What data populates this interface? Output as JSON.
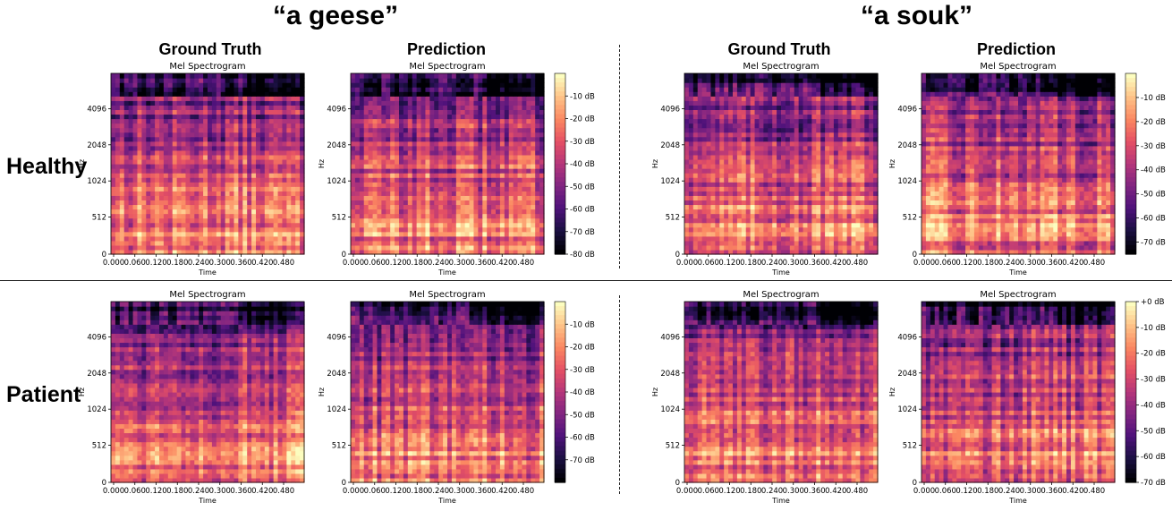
{
  "phrases": [
    "“a geese”",
    "“a souk”"
  ],
  "row_labels": [
    "Healthy",
    "Patient"
  ],
  "column_titles": [
    "Ground Truth",
    "Prediction",
    "Ground Truth",
    "Prediction"
  ],
  "chart_data": [
    {
      "type": "heatmap",
      "row": "Healthy",
      "phrase": "“a geese”",
      "column": "Ground Truth",
      "title": "Mel Spectrogram",
      "xlabel": "Time",
      "ylabel": "Hz",
      "x_ticks": [
        "0.000",
        "0.060",
        "0.120",
        "0.180",
        "0.240",
        "0.300",
        "0.360",
        "0.420",
        "0.480"
      ],
      "y_ticks": [
        "0",
        "512",
        "1024",
        "2048",
        "4096"
      ],
      "colorbar": []
    },
    {
      "type": "heatmap",
      "row": "Healthy",
      "phrase": "“a geese”",
      "column": "Prediction",
      "title": "Mel Spectrogram",
      "xlabel": "Time",
      "ylabel": "Hz",
      "x_ticks": [
        "0.000",
        "0.060",
        "0.120",
        "0.180",
        "0.240",
        "0.300",
        "0.360",
        "0.420",
        "0.480"
      ],
      "y_ticks": [
        "0",
        "512",
        "1024",
        "2048",
        "4096"
      ],
      "colorbar": [
        "-10 dB",
        "-20 dB",
        "-30 dB",
        "-40 dB",
        "-50 dB",
        "-60 dB",
        "-70 dB",
        "-80 dB"
      ],
      "colorbar_range": [
        -80,
        0
      ]
    },
    {
      "type": "heatmap",
      "row": "Healthy",
      "phrase": "“a souk”",
      "column": "Ground Truth",
      "title": "Mel Spectrogram",
      "xlabel": "Time",
      "ylabel": "Hz",
      "x_ticks": [
        "0.000",
        "0.060",
        "0.120",
        "0.180",
        "0.240",
        "0.300",
        "0.360",
        "0.420",
        "0.480"
      ],
      "y_ticks": [
        "0",
        "512",
        "1024",
        "2048",
        "4096"
      ],
      "colorbar": []
    },
    {
      "type": "heatmap",
      "row": "Healthy",
      "phrase": "“a souk”",
      "column": "Prediction",
      "title": "Mel Spectrogram",
      "xlabel": "Time",
      "ylabel": "Hz",
      "x_ticks": [
        "0.000",
        "0.060",
        "0.120",
        "0.180",
        "0.240",
        "0.300",
        "0.360",
        "0.420",
        "0.480"
      ],
      "y_ticks": [
        "0",
        "512",
        "1024",
        "2048",
        "4096"
      ],
      "colorbar": [
        "-10 dB",
        "-20 dB",
        "-30 dB",
        "-40 dB",
        "-50 dB",
        "-60 dB",
        "-70 dB"
      ],
      "colorbar_range": [
        -75,
        0
      ]
    },
    {
      "type": "heatmap",
      "row": "Patient",
      "phrase": "“a geese”",
      "column": "Ground Truth",
      "title": "Mel Spectrogram",
      "xlabel": "Time",
      "ylabel": "Hz",
      "x_ticks": [
        "0.000",
        "0.060",
        "0.120",
        "0.180",
        "0.240",
        "0.300",
        "0.360",
        "0.420",
        "0.480"
      ],
      "y_ticks": [
        "0",
        "512",
        "1024",
        "2048",
        "4096"
      ],
      "colorbar": []
    },
    {
      "type": "heatmap",
      "row": "Patient",
      "phrase": "“a geese”",
      "column": "Prediction",
      "title": "Mel Spectrogram",
      "xlabel": "Time",
      "ylabel": "Hz",
      "x_ticks": [
        "0.000",
        "0.060",
        "0.120",
        "0.180",
        "0.240",
        "0.300",
        "0.360",
        "0.420",
        "0.480"
      ],
      "y_ticks": [
        "0",
        "512",
        "1024",
        "2048",
        "4096"
      ],
      "colorbar": [
        "-10 dB",
        "-20 dB",
        "-30 dB",
        "-40 dB",
        "-50 dB",
        "-60 dB",
        "-70 dB"
      ],
      "colorbar_range": [
        -80,
        0
      ]
    },
    {
      "type": "heatmap",
      "row": "Patient",
      "phrase": "“a souk”",
      "column": "Ground Truth",
      "title": "Mel Spectrogram",
      "xlabel": "Time",
      "ylabel": "Hz",
      "x_ticks": [
        "0.000",
        "0.060",
        "0.120",
        "0.180",
        "0.240",
        "0.300",
        "0.360",
        "0.420",
        "0.480"
      ],
      "y_ticks": [
        "0",
        "512",
        "1024",
        "2048",
        "4096"
      ],
      "colorbar": []
    },
    {
      "type": "heatmap",
      "row": "Patient",
      "phrase": "“a souk”",
      "column": "Prediction",
      "title": "Mel Spectrogram",
      "xlabel": "Time",
      "ylabel": "Hz",
      "x_ticks": [
        "0.000",
        "0.060",
        "0.120",
        "0.180",
        "0.240",
        "0.300",
        "0.360",
        "0.420",
        "0.480"
      ],
      "y_ticks": [
        "0",
        "512",
        "1024",
        "2048",
        "4096"
      ],
      "colorbar": [
        "+0 dB",
        "-10 dB",
        "-20 dB",
        "-30 dB",
        "-40 dB",
        "-50 dB",
        "-60 dB",
        "-70 dB"
      ],
      "colorbar_range": [
        -70,
        0
      ]
    }
  ],
  "colormap": [
    "#000004",
    "#1c1044",
    "#4f127b",
    "#812581",
    "#b5367a",
    "#e55064",
    "#fb8761",
    "#fec287",
    "#fcfdbf"
  ]
}
